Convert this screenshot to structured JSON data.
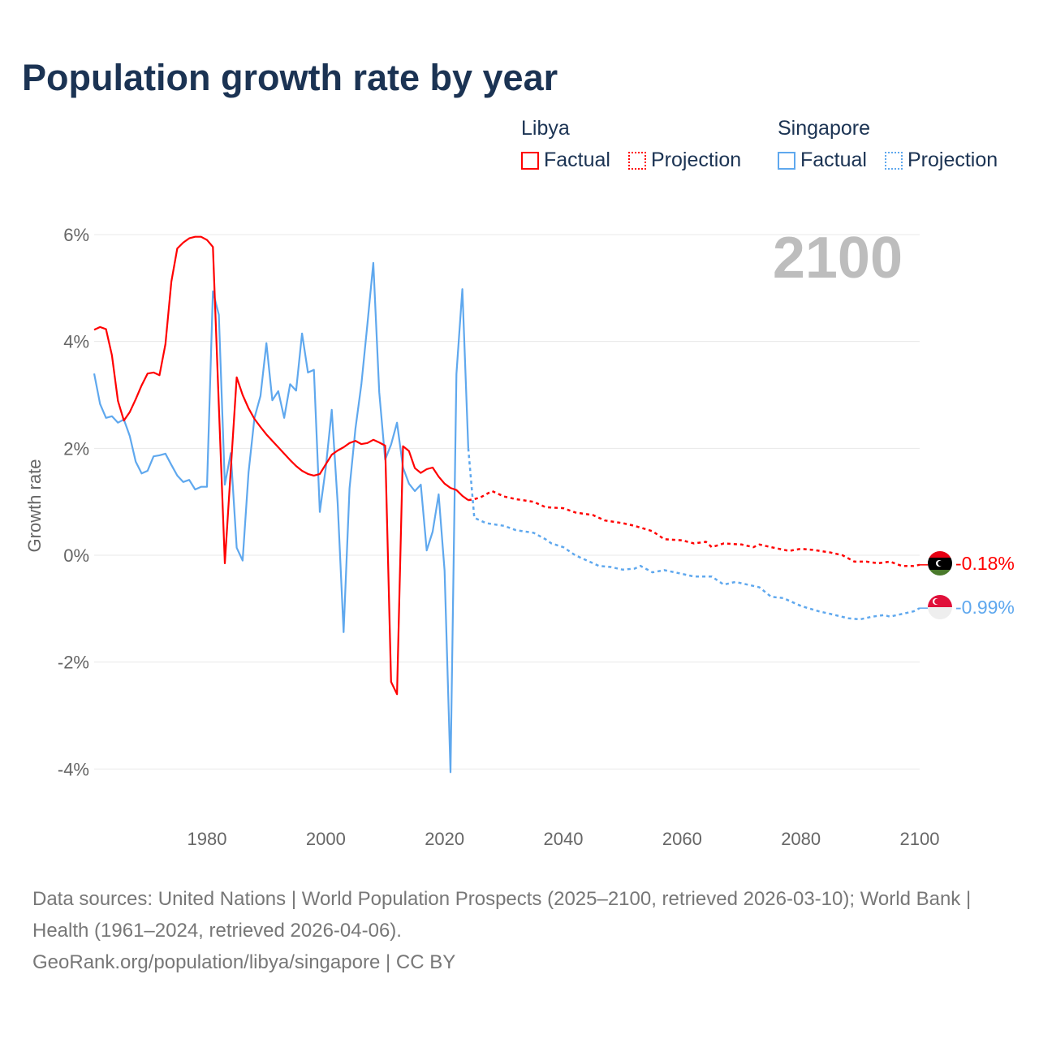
{
  "chart_data": {
    "type": "line",
    "title": "Population growth rate by year",
    "ylabel": "Growth rate",
    "xlabel": "",
    "xlim": [
      1961,
      2100
    ],
    "ylim": [
      -4,
      6
    ],
    "x_ticks": [
      "1980",
      "2000",
      "2020",
      "2040",
      "2060",
      "2080",
      "2100"
    ],
    "x_tick_values": [
      1980,
      2000,
      2020,
      2040,
      2060,
      2080,
      2100
    ],
    "y_ticks": [
      "6%",
      "4%",
      "2%",
      "0%",
      "-2%",
      "-4%"
    ],
    "y_tick_values": [
      6,
      4,
      2,
      0,
      -2,
      -4
    ],
    "grid": true,
    "year_overlay": "2100",
    "legend_placement": "top-right",
    "series": [
      {
        "name": "Libya",
        "color": "#ff0000",
        "factual_label": "Factual",
        "projection_label": "Projection",
        "end_label": "-0.18%",
        "factual_start": 1961,
        "factual": [
          4.22,
          4.27,
          4.23,
          3.74,
          2.89,
          2.52,
          2.68,
          2.92,
          3.18,
          3.4,
          3.42,
          3.37,
          3.95,
          5.12,
          5.74,
          5.85,
          5.93,
          5.96,
          5.96,
          5.9,
          5.77,
          2.8,
          -0.15,
          1.6,
          3.33,
          3.0,
          2.75,
          2.55,
          2.4,
          2.26,
          2.14,
          2.02,
          1.9,
          1.78,
          1.67,
          1.58,
          1.52,
          1.49,
          1.52,
          1.7,
          1.88,
          1.96,
          2.02,
          2.1,
          2.14,
          2.08,
          2.1,
          2.16,
          2.11,
          2.05,
          -2.37,
          -2.6,
          2.04,
          1.95,
          1.63,
          1.54,
          1.61,
          1.64,
          1.47,
          1.34,
          1.26,
          1.22,
          1.11,
          1.03
        ],
        "projection": [
          [
            2024,
            1.03
          ],
          [
            2025,
            1.05
          ],
          [
            2026,
            1.08
          ],
          [
            2028,
            1.2
          ],
          [
            2030,
            1.1
          ],
          [
            2032,
            1.05
          ],
          [
            2035,
            1.0
          ],
          [
            2037,
            0.9
          ],
          [
            2040,
            0.88
          ],
          [
            2042,
            0.8
          ],
          [
            2045,
            0.75
          ],
          [
            2047,
            0.65
          ],
          [
            2050,
            0.6
          ],
          [
            2052,
            0.55
          ],
          [
            2055,
            0.45
          ],
          [
            2057,
            0.3
          ],
          [
            2060,
            0.28
          ],
          [
            2062,
            0.22
          ],
          [
            2064,
            0.25
          ],
          [
            2065,
            0.15
          ],
          [
            2067,
            0.22
          ],
          [
            2070,
            0.2
          ],
          [
            2072,
            0.15
          ],
          [
            2073,
            0.2
          ],
          [
            2075,
            0.15
          ],
          [
            2078,
            0.08
          ],
          [
            2080,
            0.12
          ],
          [
            2082,
            0.1
          ],
          [
            2085,
            0.05
          ],
          [
            2087,
            0.0
          ],
          [
            2089,
            -0.12
          ],
          [
            2091,
            -0.12
          ],
          [
            2093,
            -0.15
          ],
          [
            2095,
            -0.12
          ],
          [
            2097,
            -0.2
          ],
          [
            2099,
            -0.2
          ],
          [
            2100,
            -0.18
          ]
        ]
      },
      {
        "name": "Singapore",
        "color": "#5fa8ee",
        "factual_label": "Factual",
        "projection_label": "Projection",
        "end_label": "-0.99%",
        "factual_start": 1961,
        "factual": [
          3.4,
          2.83,
          2.57,
          2.6,
          2.48,
          2.54,
          2.23,
          1.75,
          1.53,
          1.58,
          1.85,
          1.87,
          1.9,
          1.69,
          1.49,
          1.37,
          1.41,
          1.23,
          1.28,
          1.28,
          4.94,
          4.5,
          1.32,
          1.91,
          0.14,
          -0.1,
          1.55,
          2.57,
          2.98,
          3.97,
          2.9,
          3.07,
          2.57,
          3.2,
          3.08,
          4.15,
          3.42,
          3.47,
          0.81,
          1.63,
          2.72,
          0.97,
          -1.44,
          1.25,
          2.37,
          3.2,
          4.32,
          5.47,
          3.05,
          1.79,
          2.07,
          2.48,
          1.64,
          1.34,
          1.2,
          1.32,
          0.09,
          0.44,
          1.14,
          -0.29,
          -4.06,
          3.39,
          4.98,
          2.0
        ],
        "projection": [
          [
            2024,
            2.0
          ],
          [
            2025,
            0.7
          ],
          [
            2027,
            0.6
          ],
          [
            2030,
            0.55
          ],
          [
            2032,
            0.47
          ],
          [
            2035,
            0.42
          ],
          [
            2037,
            0.3
          ],
          [
            2038,
            0.22
          ],
          [
            2040,
            0.15
          ],
          [
            2042,
            0.0
          ],
          [
            2044,
            -0.1
          ],
          [
            2046,
            -0.2
          ],
          [
            2048,
            -0.22
          ],
          [
            2050,
            -0.27
          ],
          [
            2052,
            -0.25
          ],
          [
            2053,
            -0.2
          ],
          [
            2055,
            -0.32
          ],
          [
            2057,
            -0.28
          ],
          [
            2060,
            -0.35
          ],
          [
            2062,
            -0.4
          ],
          [
            2065,
            -0.4
          ],
          [
            2067,
            -0.55
          ],
          [
            2069,
            -0.5
          ],
          [
            2071,
            -0.55
          ],
          [
            2073,
            -0.6
          ],
          [
            2075,
            -0.78
          ],
          [
            2077,
            -0.8
          ],
          [
            2080,
            -0.95
          ],
          [
            2083,
            -1.05
          ],
          [
            2085,
            -1.1
          ],
          [
            2088,
            -1.18
          ],
          [
            2090,
            -1.2
          ],
          [
            2092,
            -1.15
          ],
          [
            2094,
            -1.12
          ],
          [
            2095,
            -1.15
          ],
          [
            2097,
            -1.1
          ],
          [
            2099,
            -1.05
          ],
          [
            2100,
            -0.99
          ]
        ]
      }
    ]
  },
  "legend": {
    "libya": {
      "name": "Libya",
      "factual": "Factual",
      "projection": "Projection"
    },
    "singapore": {
      "name": "Singapore",
      "factual": "Factual",
      "projection": "Projection"
    }
  },
  "footer": {
    "sources": "Data sources: United Nations | World Population Prospects (2025–2100, retrieved 2026-03-10); World Bank | Health (1961–2024, retrieved 2026-04-06).",
    "credit": "GeoRank.org/population/libya/singapore | CC BY"
  }
}
